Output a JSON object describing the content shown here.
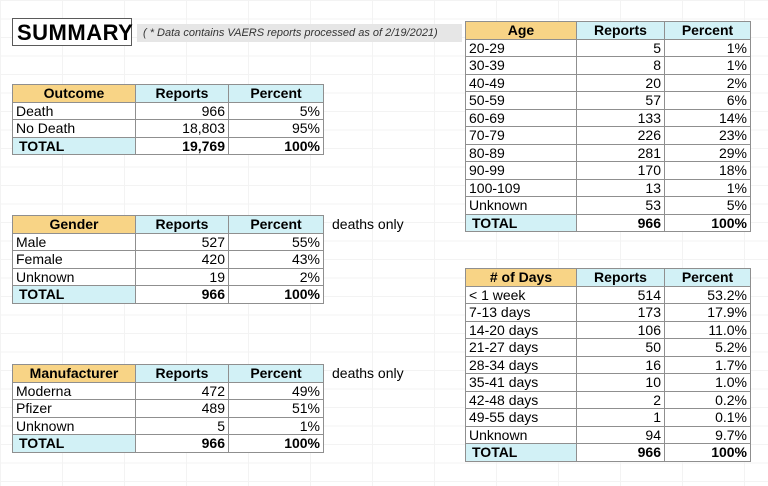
{
  "summary": {
    "title": "SUMMARY",
    "note": "( * Data contains VAERS reports processed as of 2/19/2021)"
  },
  "outcome": {
    "headers": [
      "Outcome",
      "Reports",
      "Percent"
    ],
    "rows": [
      [
        "Death",
        "966",
        "5%"
      ],
      [
        "No Death",
        "18,803",
        "95%"
      ]
    ],
    "total": [
      "TOTAL",
      "19,769",
      "100%"
    ]
  },
  "gender": {
    "headers": [
      "Gender",
      "Reports",
      "Percent"
    ],
    "note": "deaths only",
    "rows": [
      [
        "Male",
        "527",
        "55%"
      ],
      [
        "Female",
        "420",
        "43%"
      ],
      [
        "Unknown",
        "19",
        "2%"
      ]
    ],
    "total": [
      "TOTAL",
      "966",
      "100%"
    ]
  },
  "manufacturer": {
    "headers": [
      "Manufacturer",
      "Reports",
      "Percent"
    ],
    "note": "deaths only",
    "rows": [
      [
        "Moderna",
        "472",
        "49%"
      ],
      [
        "Pfizer",
        "489",
        "51%"
      ],
      [
        "Unknown",
        "5",
        "1%"
      ]
    ],
    "total": [
      "TOTAL",
      "966",
      "100%"
    ]
  },
  "age": {
    "headers": [
      "Age",
      "Reports",
      "Percent"
    ],
    "rows": [
      [
        "20-29",
        "5",
        "1%"
      ],
      [
        "30-39",
        "8",
        "1%"
      ],
      [
        "40-49",
        "20",
        "2%"
      ],
      [
        "50-59",
        "57",
        "6%"
      ],
      [
        "60-69",
        "133",
        "14%"
      ],
      [
        "70-79",
        "226",
        "23%"
      ],
      [
        "80-89",
        "281",
        "29%"
      ],
      [
        "90-99",
        "170",
        "18%"
      ],
      [
        "100-109",
        "13",
        "1%"
      ],
      [
        "Unknown",
        "53",
        "5%"
      ]
    ],
    "total": [
      "TOTAL",
      "966",
      "100%"
    ]
  },
  "days": {
    "headers": [
      "# of Days",
      "Reports",
      "Percent"
    ],
    "rows": [
      [
        "< 1 week",
        "514",
        "53.2%"
      ],
      [
        "7-13 days",
        "173",
        "17.9%"
      ],
      [
        "14-20 days",
        "106",
        "11.0%"
      ],
      [
        "21-27 days",
        "50",
        "5.2%"
      ],
      [
        "28-34 days",
        "16",
        "1.7%"
      ],
      [
        "35-41 days",
        "10",
        "1.0%"
      ],
      [
        "42-48 days",
        "2",
        "0.2%"
      ],
      [
        "49-55 days",
        "1",
        "0.1%"
      ],
      [
        "Unknown",
        "94",
        "9.7%"
      ]
    ],
    "total": [
      "TOTAL",
      "966",
      "100%"
    ]
  },
  "colors": {
    "key_header": "#f8d486",
    "column_header": "#d2f1f6",
    "note_background": "#e6e6e6"
  }
}
